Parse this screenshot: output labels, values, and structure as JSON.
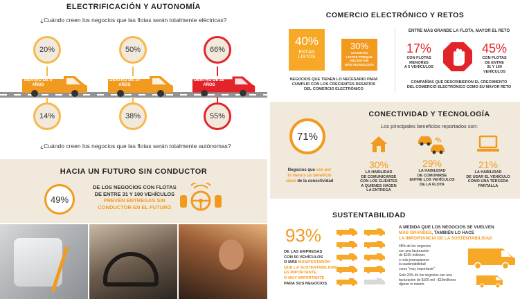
{
  "electrification": {
    "title": "ELECTRIFICACIÓN Y AUTONOMÍA",
    "q1": "¿Cuándo creen los negocios que las flotas serán totalmente eléctricas?",
    "q2": "¿Cuándo creen los negocios que las flotas serán totalmente autónomas?",
    "cars": [
      {
        "label": "DENTRO DE 5 AÑOS",
        "top": "20%",
        "bottom": "14%"
      },
      {
        "label": "DENTRO DE 10 AÑOS",
        "top": "50%",
        "bottom": "38%"
      },
      {
        "label": "DENTRO DE 20 AÑOS",
        "top": "66%",
        "bottom": "55%"
      }
    ]
  },
  "driverless": {
    "title": "HACIA UN FUTURO SIN CONDUCTOR",
    "pct": "49%",
    "line1": "DE LOS NEGOCIOS CON FLOTAS",
    "line2": "DE ENTRE 31 Y 100 VEHÍCULOS",
    "line3": "PREVÉN ENTREGAS SIN",
    "line4": "CONDUCTOR EN EL FUTURO"
  },
  "ecommerce": {
    "title": "COMERCIO ELECTRÓNICO Y RETOS",
    "box1_pct": "40%",
    "box1_l1": "ESTÁN",
    "box1_l2": "LISTOS",
    "box2_pct": "30%",
    "box2_l1": "NO ESTÁN",
    "box2_l2": "LISTOS PORQUE",
    "box2_l3": "NECESITAN",
    "box2_l4": "MÁS TECNOLOGÍA",
    "left_caption_1": "NEGOCIOS QUE TIENEN LO NECESARIO PARA",
    "left_caption_2": "CUMPLIR CON LOS CRECIENTES DESAFÍOS",
    "left_caption_3": "DEL COMERCIO ELECTRÓNICO",
    "right_title": "ENTRE MÁS GRANDE LA FLOTA, MAYOR EL RETO",
    "r1_pct": "17%",
    "r1_l1": "CON FLOTAS",
    "r1_l2": "MENORES",
    "r1_l3": "A 5 VEHÍCULOS",
    "r2_pct": "45%",
    "r2_l1": "CON FLOTAS",
    "r2_l2": "DE ENTRE",
    "r2_l3": "31 Y 100",
    "r2_l4": "VEHÍCULOS",
    "right_caption_1": "COMPAÑÍAS QUE DESCRIBIERON EL CRECIMIENTO",
    "right_caption_2": "DEL COMERCIO ELECTRÓNICO COMO SU MAYOR RETO"
  },
  "connectivity": {
    "title": "CONECTIVIDAD Y TECNOLOGÍA",
    "subtitle": "Los principales beneficios reportados son:",
    "pct": "71%",
    "cap_l1a": "Negocios que ",
    "cap_l1b": "ven por",
    "cap_l2": "lo menos un beneficio",
    "cap_l3a": "clave",
    "cap_l3b": " de la conectividad",
    "items": [
      {
        "pct": "30%",
        "l1": "LA HABILIDAD",
        "l2": "DE COMUNICARSE",
        "l3": "CON LOS CLIENTES",
        "l4": "A QUIENES HACEN",
        "l5": "LA ENTREGA",
        "icon": "house-icon"
      },
      {
        "pct": "29%",
        "l1": "LA HABILIDAD",
        "l2": "DE COMUNIRSE",
        "l3": "ENTRE LOS VEHÍCULOS",
        "l4": "DE LA FLOTA",
        "l5": "",
        "icon": "cars-icon"
      },
      {
        "pct": "21%",
        "l1": "LA HABILIDAD",
        "l2": "DE USAR EL VEHÍCULO",
        "l3": "COMO UNA TERCERA",
        "l4": "PANTALLA",
        "l5": "",
        "icon": "laptop-icon"
      }
    ]
  },
  "sustainability": {
    "title": "SUSTENTABILIDAD",
    "pct": "93%",
    "l1": "DE LAS EMPRESAS",
    "l2": "CON 50 VEHÍCULOS",
    "l3a": "O MÁS ",
    "l3b": "MANIFESTARON",
    "l4": "QUE LA SUSTENTABILIDAD",
    "l5": "ES IMPORTANTE",
    "l6": "O MUY IMPORTANTE",
    "l7": "PARA SUS NEGOCIOS",
    "right_l1": "A MEDIDA QUE LOS NEGOCIOS SE VUELVEN",
    "right_l2a": "MÁS GRANDES",
    "right_l2b": ", TAMBIÉN LO HACE",
    "right_l3": "LA IMPORTANCIA DE LA SUSTENTABILIDAD",
    "n1": "48% de los negocios",
    "n2": "con una facturación",
    "n3": "de $100 millones",
    "n4": "o más jerarquizaron",
    "n5": "la sustentabilidad",
    "n6": "como \"muy importante\"",
    "n7": "Solo 29% de los negocios con una",
    "n8": "facturación de $100 mil - $10millones",
    "n9": "dijeron lo mismo."
  },
  "colors": {
    "orange": "#f29a1e",
    "red": "#e2242a",
    "beige": "#f1e9dc",
    "grey": "#a8a8a8"
  }
}
